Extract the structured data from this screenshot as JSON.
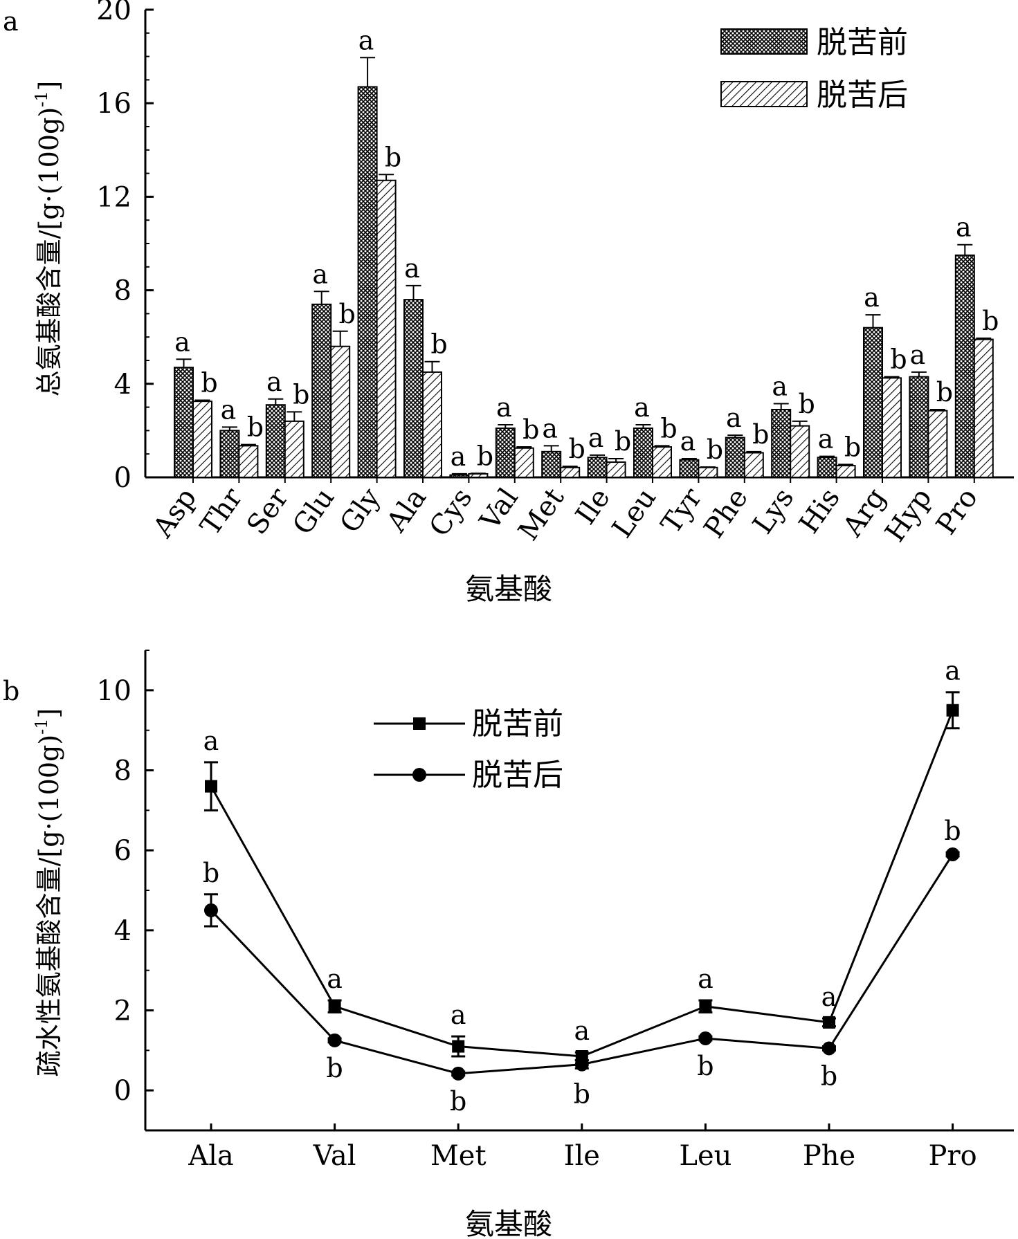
{
  "chart_data": [
    {
      "panel_label": "a",
      "type": "bar",
      "title": "",
      "xlabel": "氨基酸",
      "ylabel": "总氨基酸含量/[g·(100g)⁻¹]",
      "ylabel_main": "总氨基酸含量/[g·(100g)",
      "ylabel_sup": "-1",
      "ylabel_close": "]",
      "ylim": [
        0,
        20
      ],
      "yticks": [
        "0",
        "4",
        "8",
        "12",
        "16",
        "20"
      ],
      "categories": [
        "Asp",
        "Thr",
        "Ser",
        "Glu",
        "Gly",
        "Ala",
        "Cys",
        "Val",
        "Met",
        "Ile",
        "Leu",
        "Tyr",
        "Phe",
        "Lys",
        "His",
        "Arg",
        "Hyp",
        "Pro"
      ],
      "legend_position": "top-right",
      "series": [
        {
          "name": "脱苦前",
          "pattern": "crosshatch",
          "values": [
            4.7,
            2.0,
            3.1,
            7.4,
            16.7,
            7.6,
            0.1,
            2.1,
            1.1,
            0.85,
            2.1,
            0.75,
            1.7,
            2.9,
            0.85,
            6.4,
            4.3,
            9.5
          ],
          "errors": [
            0.35,
            0.15,
            0.25,
            0.55,
            1.25,
            0.6,
            0.05,
            0.15,
            0.25,
            0.1,
            0.15,
            0.05,
            0.1,
            0.25,
            0.05,
            0.55,
            0.2,
            0.45
          ],
          "sig_labels": [
            "a",
            "a",
            "a",
            "a",
            "a",
            "a",
            "a",
            "a",
            "a",
            "a",
            "a",
            "a",
            "a",
            "a",
            "a",
            "a",
            "a",
            "a"
          ]
        },
        {
          "name": "脱苦后",
          "pattern": "diagonal",
          "values": [
            3.25,
            1.35,
            2.4,
            5.6,
            12.7,
            4.5,
            0.15,
            1.25,
            0.42,
            0.65,
            1.3,
            0.42,
            1.05,
            2.2,
            0.5,
            4.25,
            2.85,
            5.9
          ],
          "errors": [
            0.05,
            0.05,
            0.4,
            0.65,
            0.25,
            0.45,
            0.02,
            0.05,
            0.05,
            0.15,
            0.05,
            0.02,
            0.05,
            0.2,
            0.05,
            0.05,
            0.05,
            0.05
          ],
          "sig_labels": [
            "b",
            "b",
            "b",
            "b",
            "b",
            "b",
            "b",
            "b",
            "b",
            "b",
            "b",
            "b",
            "b",
            "b",
            "b",
            "b",
            "b",
            "b"
          ]
        }
      ]
    },
    {
      "panel_label": "b",
      "type": "line",
      "title": "",
      "xlabel": "氨基酸",
      "ylabel": "疏水性氨基酸含量/[g·(100g)⁻¹]",
      "ylabel_main": "疏水性氨基酸含量/[g·(100g)",
      "ylabel_sup": "-1",
      "ylabel_close": "]",
      "ylim": [
        -1,
        11
      ],
      "yticks": [
        "0",
        "2",
        "4",
        "6",
        "8",
        "10"
      ],
      "categories": [
        "Ala",
        "Val",
        "Met",
        "Ile",
        "Leu",
        "Phe",
        "Pro"
      ],
      "legend_position": "top-center",
      "series": [
        {
          "name": "脱苦前",
          "marker": "square",
          "values": [
            7.6,
            2.1,
            1.1,
            0.85,
            2.1,
            1.7,
            9.5
          ],
          "errors": [
            0.6,
            0.15,
            0.25,
            0.1,
            0.15,
            0.1,
            0.45
          ],
          "sig_labels": [
            "a",
            "a",
            "a",
            "a",
            "a",
            "a",
            "a"
          ]
        },
        {
          "name": "脱苦后",
          "marker": "circle",
          "values": [
            4.5,
            1.25,
            0.42,
            0.65,
            1.3,
            1.05,
            5.9
          ],
          "errors": [
            0.4,
            0.05,
            0.05,
            0.1,
            0.05,
            0.05,
            0.05
          ],
          "sig_labels": [
            "b",
            "b",
            "b",
            "b",
            "b",
            "b",
            "b"
          ]
        }
      ]
    }
  ]
}
